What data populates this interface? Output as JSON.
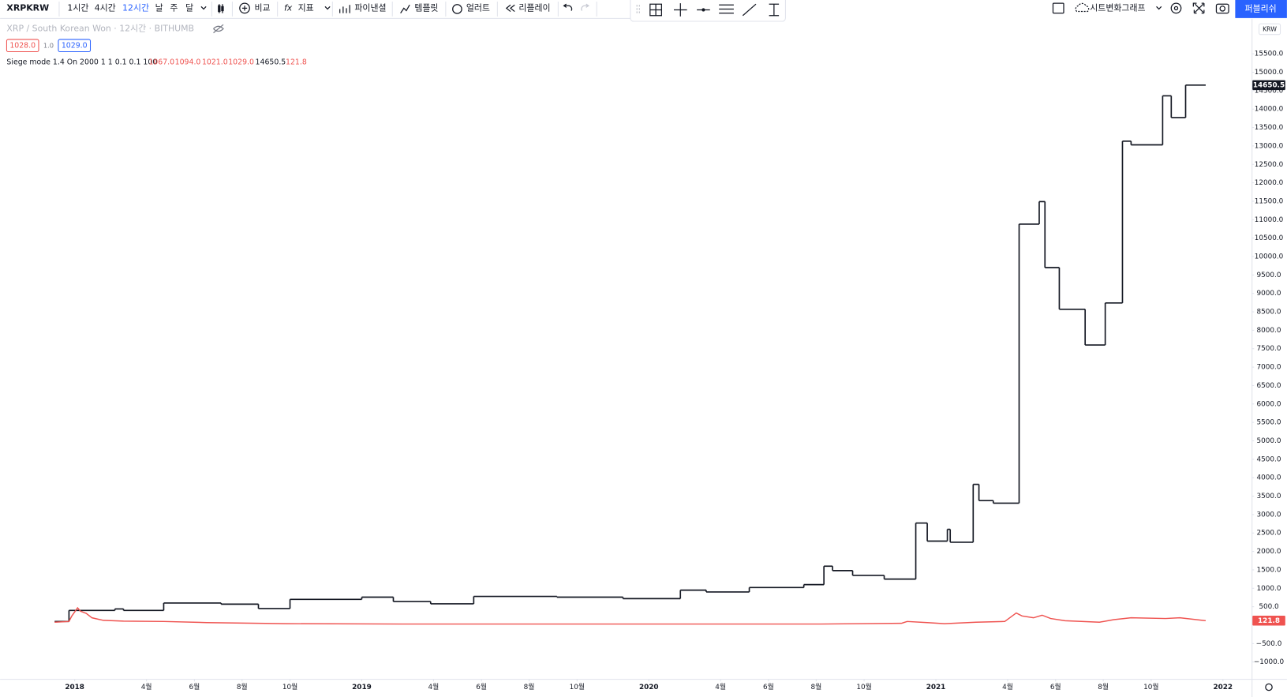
{
  "toolbar": {
    "symbol": "XRPKRW",
    "intervals": [
      "1시간",
      "4시간",
      "12시간",
      "날",
      "주",
      "달"
    ],
    "compare": "비교",
    "indicators": "지표",
    "financials": "파이낸셜",
    "templates": "템플릿",
    "alert": "얼러트",
    "replay": "리플레이",
    "layout": "시트변화그래프",
    "publish": "퍼블리쉬"
  },
  "symbol_info": {
    "title": "XRP / South Korean Won · 12시간 · BITHUMB",
    "sell": "1028.0",
    "spread": "1.0",
    "buy": "1029.0"
  },
  "indicator_legend": {
    "label": "Siege mode 1.4 On 2000 1 1 0.1 0.1 100",
    "ohlc": [
      "1067.0",
      "1094.0",
      "1021.0",
      "1029.0"
    ],
    "value": "14650.5",
    "price": "121.8"
  },
  "chart_data": {
    "type": "line",
    "currency": "KRW",
    "xlim": [
      2017.74,
      2022.1
    ],
    "xticks": [
      2018,
      {
        "value": 2018.25,
        "label": "4월"
      },
      {
        "value": 2018.417,
        "label": "6월"
      },
      {
        "value": 2018.583,
        "label": "8월"
      },
      {
        "value": 2018.75,
        "label": "10월"
      },
      2019,
      {
        "value": 2019.25,
        "label": "4월"
      },
      {
        "value": 2019.417,
        "label": "6월"
      },
      {
        "value": 2019.583,
        "label": "8월"
      },
      {
        "value": 2019.75,
        "label": "10월"
      },
      2020,
      {
        "value": 2020.25,
        "label": "4월"
      },
      {
        "value": 2020.417,
        "label": "6월"
      },
      {
        "value": 2020.583,
        "label": "8월"
      },
      {
        "value": 2020.75,
        "label": "10월"
      },
      2021,
      {
        "value": 2021.25,
        "label": "4월"
      },
      {
        "value": 2021.417,
        "label": "6월"
      },
      {
        "value": 2021.583,
        "label": "8월"
      },
      {
        "value": 2021.75,
        "label": "10월"
      },
      2022
    ],
    "ylim": [
      -1459,
      16336
    ],
    "yticks": [
      {
        "value": -1000,
        "label": "−1000.0"
      },
      {
        "value": -500,
        "label": "−500.0"
      },
      {
        "value": 500,
        "label": "500.0"
      },
      {
        "value": 1000,
        "label": "1000.0"
      },
      {
        "value": 1500,
        "label": "1500.0"
      },
      {
        "value": 2000,
        "label": "2000.0"
      },
      {
        "value": 2500,
        "label": "2500.0"
      },
      {
        "value": 3000,
        "label": "3000.0"
      },
      {
        "value": 3500,
        "label": "3500.0"
      },
      {
        "value": 4000,
        "label": "4000.0"
      },
      {
        "value": 4500,
        "label": "4500.0"
      },
      {
        "value": 5000,
        "label": "5000.0"
      },
      {
        "value": 5500,
        "label": "5500.0"
      },
      {
        "value": 6000,
        "label": "6000.0"
      },
      {
        "value": 6500,
        "label": "6500.0"
      },
      {
        "value": 7000,
        "label": "7000.0"
      },
      {
        "value": 7500,
        "label": "7500.0"
      },
      {
        "value": 8000,
        "label": "8000.0"
      },
      {
        "value": 8500,
        "label": "8500.0"
      },
      {
        "value": 9000,
        "label": "9000.0"
      },
      {
        "value": 9500,
        "label": "9500.0"
      },
      {
        "value": 10000,
        "label": "10000.0"
      },
      {
        "value": 10500,
        "label": "10500.0"
      },
      {
        "value": 11000,
        "label": "11000.0"
      },
      {
        "value": 11500,
        "label": "11500.0"
      },
      {
        "value": 12000,
        "label": "12000.0"
      },
      {
        "value": 12500,
        "label": "12500.0"
      },
      {
        "value": 13000,
        "label": "13000.0"
      },
      {
        "value": 13500,
        "label": "13500.0"
      },
      {
        "value": 14000,
        "label": "14000.0"
      },
      {
        "value": 14500,
        "label": "14500.0"
      },
      {
        "value": 15000,
        "label": "15000.0"
      },
      {
        "value": 15500,
        "label": "15500.0"
      }
    ],
    "grid": false,
    "series": [
      {
        "color": "#131722",
        "step": true,
        "x": [
          2017.93,
          2017.98,
          2018.14,
          2018.17,
          2018.31,
          2018.51,
          2018.64,
          2018.75,
          2019.0,
          2019.11,
          2019.24,
          2019.39,
          2019.68,
          2019.91,
          2020.11,
          2020.2,
          2020.35,
          2020.54,
          2020.61,
          2020.64,
          2020.71,
          2020.82,
          2020.93,
          2020.97,
          2021.04,
          2021.05,
          2021.13,
          2021.15,
          2021.2,
          2021.29,
          2021.36,
          2021.38,
          2021.43,
          2021.52,
          2021.59,
          2021.65,
          2021.68,
          2021.79,
          2021.82,
          2021.87,
          2021.94
        ],
        "values": [
          100,
          400,
          440,
          400,
          600,
          570,
          450,
          700,
          760,
          640,
          580,
          780,
          760,
          720,
          950,
          900,
          1020,
          1100,
          1600,
          1480,
          1350,
          1250,
          2770,
          2280,
          2600,
          2250,
          3820,
          3380,
          3310,
          10880,
          11490,
          9700,
          8570,
          7600,
          8740,
          13130,
          13030,
          14360,
          13770,
          14650.5,
          14650.5
        ]
      },
      {
        "color": "#ef5350",
        "step": false,
        "x": [
          2017.93,
          2017.98,
          2017.99,
          2018.01,
          2018.02,
          2018.04,
          2018.06,
          2018.1,
          2018.17,
          2018.31,
          2018.46,
          2018.74,
          2019.17,
          2019.74,
          2020.31,
          2020.6,
          2020.88,
          2020.9,
          2020.97,
          2021.03,
          2021.14,
          2021.24,
          2021.28,
          2021.3,
          2021.34,
          2021.37,
          2021.4,
          2021.45,
          2021.57,
          2021.62,
          2021.68,
          2021.8,
          2021.85,
          2021.94
        ],
        "values": [
          80,
          100,
          250,
          470,
          380,
          320,
          200,
          130,
          110,
          100,
          70,
          40,
          30,
          30,
          30,
          30,
          50,
          100,
          70,
          40,
          80,
          100,
          330,
          250,
          200,
          270,
          180,
          120,
          80,
          150,
          200,
          180,
          200,
          121.8
        ]
      }
    ]
  }
}
